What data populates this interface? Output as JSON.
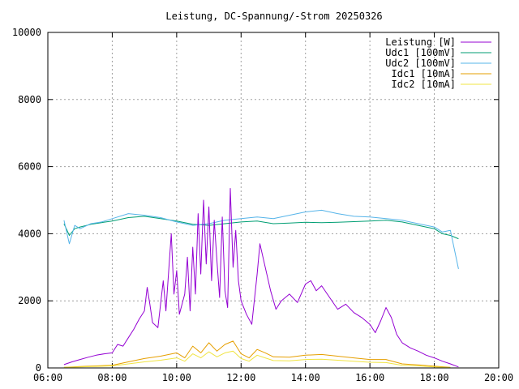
{
  "chart_data": {
    "type": "line",
    "title": "Leistung, DC-Spannung/-Strom 20250326",
    "xlabel": "",
    "ylabel": "",
    "x_range": [
      "06:00",
      "20:00"
    ],
    "ylim": [
      0,
      10000
    ],
    "x_ticks": [
      "06:00",
      "08:00",
      "10:00",
      "12:00",
      "14:00",
      "16:00",
      "18:00",
      "20:00"
    ],
    "y_ticks": [
      "0",
      "2000",
      "4000",
      "6000",
      "8000",
      "10000"
    ],
    "grid": true,
    "legend_position": "top-right",
    "series": [
      {
        "name": "Leistung [W]",
        "color": "#9400d3",
        "points": [
          [
            "06:30",
            100
          ],
          [
            "06:45",
            180
          ],
          [
            "07:00",
            250
          ],
          [
            "07:15",
            320
          ],
          [
            "07:30",
            380
          ],
          [
            "07:45",
            420
          ],
          [
            "08:00",
            450
          ],
          [
            "08:10",
            700
          ],
          [
            "08:20",
            650
          ],
          [
            "08:30",
            900
          ],
          [
            "08:40",
            1150
          ],
          [
            "08:50",
            1450
          ],
          [
            "09:00",
            1700
          ],
          [
            "09:05",
            2400
          ],
          [
            "09:10",
            1900
          ],
          [
            "09:15",
            1350
          ],
          [
            "09:25",
            1200
          ],
          [
            "09:35",
            2600
          ],
          [
            "09:40",
            1700
          ],
          [
            "09:50",
            4000
          ],
          [
            "09:55",
            2200
          ],
          [
            "10:00",
            2900
          ],
          [
            "10:05",
            1600
          ],
          [
            "10:15",
            2200
          ],
          [
            "10:20",
            3300
          ],
          [
            "10:25",
            1700
          ],
          [
            "10:30",
            3600
          ],
          [
            "10:35",
            2200
          ],
          [
            "10:40",
            4600
          ],
          [
            "10:45",
            2800
          ],
          [
            "10:50",
            5000
          ],
          [
            "10:55",
            3100
          ],
          [
            "11:00",
            4800
          ],
          [
            "11:05",
            2600
          ],
          [
            "11:10",
            4400
          ],
          [
            "11:15",
            3200
          ],
          [
            "11:20",
            2100
          ],
          [
            "11:25",
            4500
          ],
          [
            "11:30",
            2300
          ],
          [
            "11:35",
            1800
          ],
          [
            "11:40",
            5350
          ],
          [
            "11:45",
            3000
          ],
          [
            "11:50",
            4100
          ],
          [
            "11:55",
            2600
          ],
          [
            "12:00",
            2000
          ],
          [
            "12:10",
            1600
          ],
          [
            "12:20",
            1300
          ],
          [
            "12:30",
            2800
          ],
          [
            "12:35",
            3700
          ],
          [
            "12:45",
            3000
          ],
          [
            "12:55",
            2300
          ],
          [
            "13:05",
            1750
          ],
          [
            "13:15",
            2000
          ],
          [
            "13:30",
            2200
          ],
          [
            "13:45",
            1950
          ],
          [
            "14:00",
            2500
          ],
          [
            "14:10",
            2600
          ],
          [
            "14:20",
            2300
          ],
          [
            "14:30",
            2450
          ],
          [
            "14:45",
            2100
          ],
          [
            "15:00",
            1750
          ],
          [
            "15:15",
            1900
          ],
          [
            "15:30",
            1650
          ],
          [
            "15:45",
            1500
          ],
          [
            "16:00",
            1300
          ],
          [
            "16:10",
            1050
          ],
          [
            "16:20",
            1400
          ],
          [
            "16:30",
            1800
          ],
          [
            "16:40",
            1500
          ],
          [
            "16:50",
            1000
          ],
          [
            "17:00",
            750
          ],
          [
            "17:15",
            600
          ],
          [
            "17:30",
            500
          ],
          [
            "17:45",
            380
          ],
          [
            "18:00",
            300
          ],
          [
            "18:15",
            200
          ],
          [
            "18:30",
            120
          ],
          [
            "18:45",
            30
          ]
        ]
      },
      {
        "name": "Udc1 [100mV]",
        "color": "#009e73",
        "points": [
          [
            "06:30",
            4300
          ],
          [
            "06:40",
            3950
          ],
          [
            "06:50",
            4150
          ],
          [
            "07:00",
            4200
          ],
          [
            "07:20",
            4280
          ],
          [
            "07:40",
            4330
          ],
          [
            "08:00",
            4380
          ],
          [
            "08:30",
            4480
          ],
          [
            "09:00",
            4520
          ],
          [
            "09:30",
            4450
          ],
          [
            "10:00",
            4380
          ],
          [
            "10:30",
            4280
          ],
          [
            "11:00",
            4250
          ],
          [
            "11:30",
            4300
          ],
          [
            "12:00",
            4350
          ],
          [
            "12:30",
            4380
          ],
          [
            "13:00",
            4300
          ],
          [
            "13:30",
            4320
          ],
          [
            "14:00",
            4340
          ],
          [
            "14:30",
            4330
          ],
          [
            "15:00",
            4340
          ],
          [
            "15:30",
            4360
          ],
          [
            "16:00",
            4380
          ],
          [
            "16:30",
            4400
          ],
          [
            "17:00",
            4350
          ],
          [
            "17:30",
            4250
          ],
          [
            "18:00",
            4150
          ],
          [
            "18:15",
            4000
          ],
          [
            "18:30",
            3950
          ],
          [
            "18:45",
            3850
          ]
        ]
      },
      {
        "name": "Udc2 [100mV]",
        "color": "#56b4e9",
        "points": [
          [
            "06:30",
            4400
          ],
          [
            "06:40",
            3700
          ],
          [
            "06:50",
            4250
          ],
          [
            "07:00",
            4150
          ],
          [
            "07:20",
            4300
          ],
          [
            "07:40",
            4350
          ],
          [
            "08:00",
            4450
          ],
          [
            "08:30",
            4600
          ],
          [
            "09:00",
            4550
          ],
          [
            "09:30",
            4480
          ],
          [
            "10:00",
            4350
          ],
          [
            "10:30",
            4250
          ],
          [
            "11:00",
            4300
          ],
          [
            "11:30",
            4400
          ],
          [
            "12:00",
            4450
          ],
          [
            "12:30",
            4500
          ],
          [
            "13:00",
            4450
          ],
          [
            "13:30",
            4550
          ],
          [
            "14:00",
            4650
          ],
          [
            "14:30",
            4700
          ],
          [
            "15:00",
            4600
          ],
          [
            "15:30",
            4520
          ],
          [
            "16:00",
            4500
          ],
          [
            "16:30",
            4450
          ],
          [
            "17:00",
            4400
          ],
          [
            "17:30",
            4300
          ],
          [
            "18:00",
            4200
          ],
          [
            "18:15",
            4050
          ],
          [
            "18:30",
            4100
          ],
          [
            "18:45",
            2950
          ]
        ]
      },
      {
        "name": "Idc1 [10mA]",
        "color": "#e69f00",
        "points": [
          [
            "06:30",
            20
          ],
          [
            "07:00",
            40
          ],
          [
            "07:30",
            60
          ],
          [
            "08:00",
            80
          ],
          [
            "08:30",
            180
          ],
          [
            "09:00",
            280
          ],
          [
            "09:30",
            350
          ],
          [
            "10:00",
            450
          ],
          [
            "10:15",
            300
          ],
          [
            "10:30",
            650
          ],
          [
            "10:45",
            450
          ],
          [
            "11:00",
            750
          ],
          [
            "11:15",
            500
          ],
          [
            "11:30",
            700
          ],
          [
            "11:45",
            800
          ],
          [
            "12:00",
            420
          ],
          [
            "12:15",
            300
          ],
          [
            "12:30",
            550
          ],
          [
            "12:45",
            450
          ],
          [
            "13:00",
            330
          ],
          [
            "13:30",
            320
          ],
          [
            "14:00",
            380
          ],
          [
            "14:30",
            400
          ],
          [
            "15:00",
            350
          ],
          [
            "15:30",
            300
          ],
          [
            "16:00",
            250
          ],
          [
            "16:30",
            250
          ],
          [
            "17:00",
            120
          ],
          [
            "17:30",
            90
          ],
          [
            "18:00",
            50
          ],
          [
            "18:30",
            20
          ]
        ]
      },
      {
        "name": "Idc2 [10mA]",
        "color": "#f0e442",
        "points": [
          [
            "06:30",
            15
          ],
          [
            "07:00",
            30
          ],
          [
            "07:30",
            45
          ],
          [
            "08:00",
            60
          ],
          [
            "08:30",
            120
          ],
          [
            "09:00",
            180
          ],
          [
            "09:30",
            230
          ],
          [
            "10:00",
            300
          ],
          [
            "10:15",
            200
          ],
          [
            "10:30",
            420
          ],
          [
            "10:45",
            300
          ],
          [
            "11:00",
            480
          ],
          [
            "11:15",
            330
          ],
          [
            "11:30",
            450
          ],
          [
            "11:45",
            500
          ],
          [
            "12:00",
            280
          ],
          [
            "12:15",
            200
          ],
          [
            "12:30",
            380
          ],
          [
            "12:45",
            300
          ],
          [
            "13:00",
            220
          ],
          [
            "13:30",
            210
          ],
          [
            "14:00",
            250
          ],
          [
            "14:30",
            260
          ],
          [
            "15:00",
            230
          ],
          [
            "15:30",
            200
          ],
          [
            "16:00",
            170
          ],
          [
            "16:30",
            160
          ],
          [
            "17:00",
            80
          ],
          [
            "17:30",
            60
          ],
          [
            "18:00",
            30
          ],
          [
            "18:30",
            10
          ]
        ]
      }
    ]
  }
}
